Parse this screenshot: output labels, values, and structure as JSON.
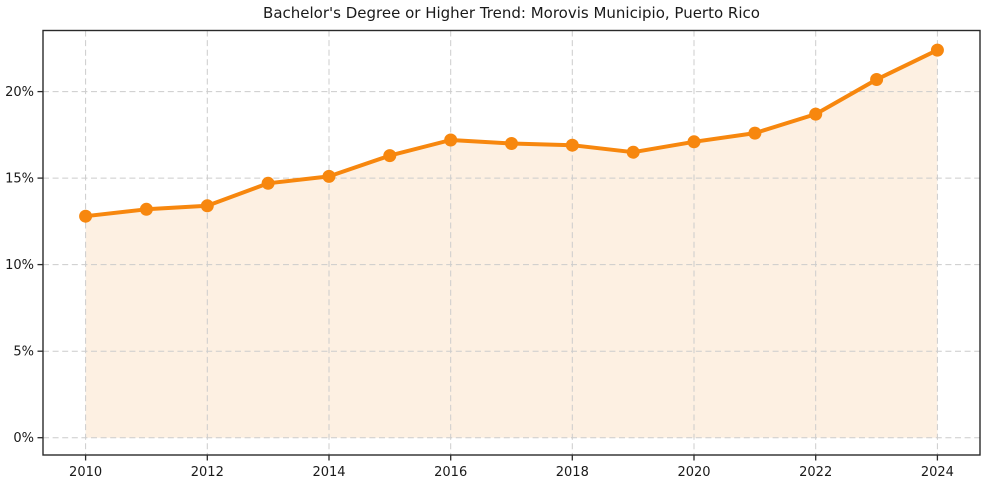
{
  "chart_data": {
    "type": "line",
    "title": "Bachelor's Degree or Higher Trend: Morovis Municipio, Puerto Rico",
    "xlabel": "",
    "ylabel": "",
    "x": [
      2010,
      2011,
      2012,
      2013,
      2014,
      2015,
      2016,
      2017,
      2018,
      2019,
      2020,
      2021,
      2022,
      2023,
      2024
    ],
    "values": [
      12.8,
      13.2,
      13.4,
      14.7,
      15.1,
      16.3,
      17.2,
      17.0,
      16.9,
      16.5,
      17.1,
      17.6,
      18.7,
      20.7,
      22.4
    ],
    "unit": "%",
    "xlim": [
      2009.3,
      2024.7
    ],
    "ylim": [
      -1.0,
      23.53
    ],
    "xticks": [
      2010,
      2012,
      2014,
      2016,
      2018,
      2020,
      2022,
      2024
    ],
    "xtick_labels": [
      "2010",
      "2012",
      "2014",
      "2016",
      "2018",
      "2020",
      "2022",
      "2024"
    ],
    "yticks": [
      0,
      5,
      10,
      15,
      20
    ],
    "ytick_labels": [
      "0%",
      "5%",
      "10%",
      "15%",
      "20%"
    ],
    "grid": true,
    "grid_style": "dashed",
    "legend_position": "none",
    "marker": "circle",
    "area_fill_to": 0,
    "colors": {
      "line": "#f7870e",
      "marker": "#f7870e",
      "area_fill": "#fdf0e2",
      "grid": "#cccccc",
      "spine": "#2a2a2a",
      "text": "#1a1a1a",
      "background": "#ffffff"
    }
  }
}
